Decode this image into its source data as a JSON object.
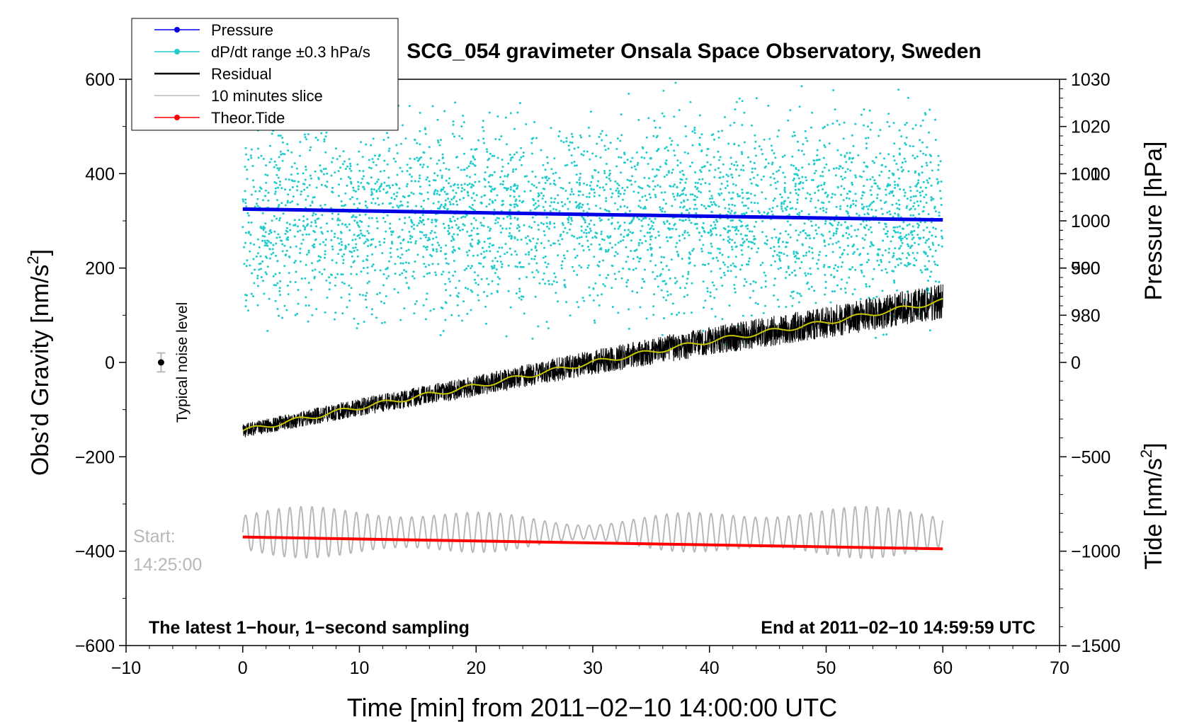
{
  "chart_data": {
    "type": "line",
    "title": "SCG_054 gravimeter Onsala Space Observatory, Sweden",
    "xlabel": "Time [min] from 2011−02−10 14:00:00 UTC",
    "ylabel_left": "Obs’d Gravity [nm/s",
    "ylabel_left_sup": "2",
    "ylabel_left_close": "]",
    "ylabel_right_pressure": "Pressure [hPa]",
    "ylabel_right_tide": "Tide [nm/s",
    "ylabel_right_tide_sup": "2",
    "ylabel_right_tide_close": "]",
    "xlim": [
      -10,
      70
    ],
    "ylim_left": [
      -600,
      600
    ],
    "pressure_axis": {
      "range": [
        970,
        1030
      ],
      "ticks": [
        "1030",
        "1020",
        "1010",
        "1000",
        "990",
        "980"
      ],
      "tick_values": [
        1030,
        1020,
        1010,
        1000,
        990,
        980
      ]
    },
    "tide_axis": {
      "range": [
        -1500,
        1500
      ],
      "ticks": [
        "1000",
        "500",
        "0",
        "−500",
        "−1000",
        "−1500"
      ],
      "tick_values": [
        1000,
        500,
        0,
        -500,
        -1000,
        -1500
      ]
    },
    "x_ticks": [
      "−10",
      "0",
      "10",
      "20",
      "30",
      "40",
      "50",
      "60",
      "70"
    ],
    "x_tick_values": [
      -10,
      0,
      10,
      20,
      30,
      40,
      50,
      60,
      70
    ],
    "y_ticks": [
      "600",
      "400",
      "200",
      "0",
      "−200",
      "−400",
      "−600"
    ],
    "y_tick_values": [
      600,
      400,
      200,
      0,
      -200,
      -400,
      -600
    ],
    "legend": [
      {
        "label": "Pressure",
        "color": "#0000e6",
        "marker": true
      },
      {
        "label": "dP/dt range ±0.3 hPa/s",
        "color": "#22cccc",
        "marker": true
      },
      {
        "label": "Residual",
        "color": "#000000",
        "marker": false
      },
      {
        "label": "10 minutes slice",
        "color": "#b8b8b8",
        "marker": false
      },
      {
        "label": "Theor.Tide",
        "color": "#ff0000",
        "marker": true
      }
    ],
    "series": [
      {
        "name": "Pressure",
        "axis": "pressure",
        "x": [
          0,
          60
        ],
        "values": [
          1002.5,
          1000.2
        ],
        "color": "#0000e6"
      },
      {
        "name": "Residual",
        "axis": "gravity",
        "x": [
          0,
          10,
          20,
          30,
          40,
          50,
          60
        ],
        "values": [
          -145,
          -95,
          -50,
          0,
          45,
          85,
          130
        ],
        "color": "#000000",
        "noise": 25
      },
      {
        "name": "Residual smoothed",
        "axis": "gravity",
        "x": [
          0,
          10,
          20,
          30,
          40,
          50,
          60
        ],
        "values": [
          -145,
          -95,
          -50,
          0,
          45,
          85,
          130
        ],
        "color": "#c8c800"
      },
      {
        "name": "Theor.Tide",
        "axis": "gravity",
        "x": [
          0,
          60
        ],
        "values": [
          -370,
          -395
        ],
        "color": "#ff0000"
      },
      {
        "name": "10 minutes slice",
        "axis": "gravity",
        "center": -360,
        "amplitude": 25,
        "color": "#b8b8b8"
      },
      {
        "name": "dP/dt range",
        "axis": "gravity",
        "y_range": [
          20,
          600
        ],
        "color": "#22cccc"
      }
    ],
    "noise_marker": {
      "label": "Typical noise level",
      "x": -7,
      "y": 0,
      "error": 20
    },
    "start_label": "Start:",
    "start_time": "14:25:00",
    "bottom_left_text": "The latest 1−hour, 1−second sampling",
    "bottom_right_text": "End at 2011−02−10 14:59:59 UTC"
  }
}
